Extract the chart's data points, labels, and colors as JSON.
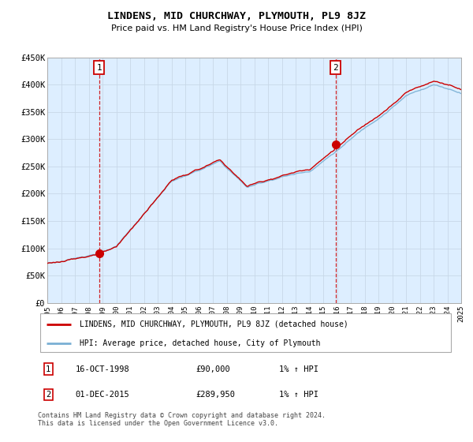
{
  "title": "LINDENS, MID CHURCHWAY, PLYMOUTH, PL9 8JZ",
  "subtitle": "Price paid vs. HM Land Registry's House Price Index (HPI)",
  "ylim": [
    0,
    450000
  ],
  "yticks": [
    0,
    50000,
    100000,
    150000,
    200000,
    250000,
    300000,
    350000,
    400000,
    450000
  ],
  "line1_color": "#cc0000",
  "line2_color": "#7ab0d4",
  "line1_label": "LINDENS, MID CHURCHWAY, PLYMOUTH, PL9 8JZ (detached house)",
  "line2_label": "HPI: Average price, detached house, City of Plymouth",
  "marker1_year": 1998.79,
  "marker1_price": 90000,
  "marker2_year": 2015.92,
  "marker2_price": 289950,
  "sale1_date": "16-OCT-1998",
  "sale1_price": "£90,000",
  "sale1_hpi": "1% ↑ HPI",
  "sale2_date": "01-DEC-2015",
  "sale2_price": "£289,950",
  "sale2_hpi": "1% ↑ HPI",
  "footer": "Contains HM Land Registry data © Crown copyright and database right 2024.\nThis data is licensed under the Open Government Licence v3.0.",
  "bg_color": "#ffffff",
  "grid_color": "#c8d8e8",
  "plot_bg": "#ddeeff",
  "xstart": 1995,
  "xend": 2025
}
